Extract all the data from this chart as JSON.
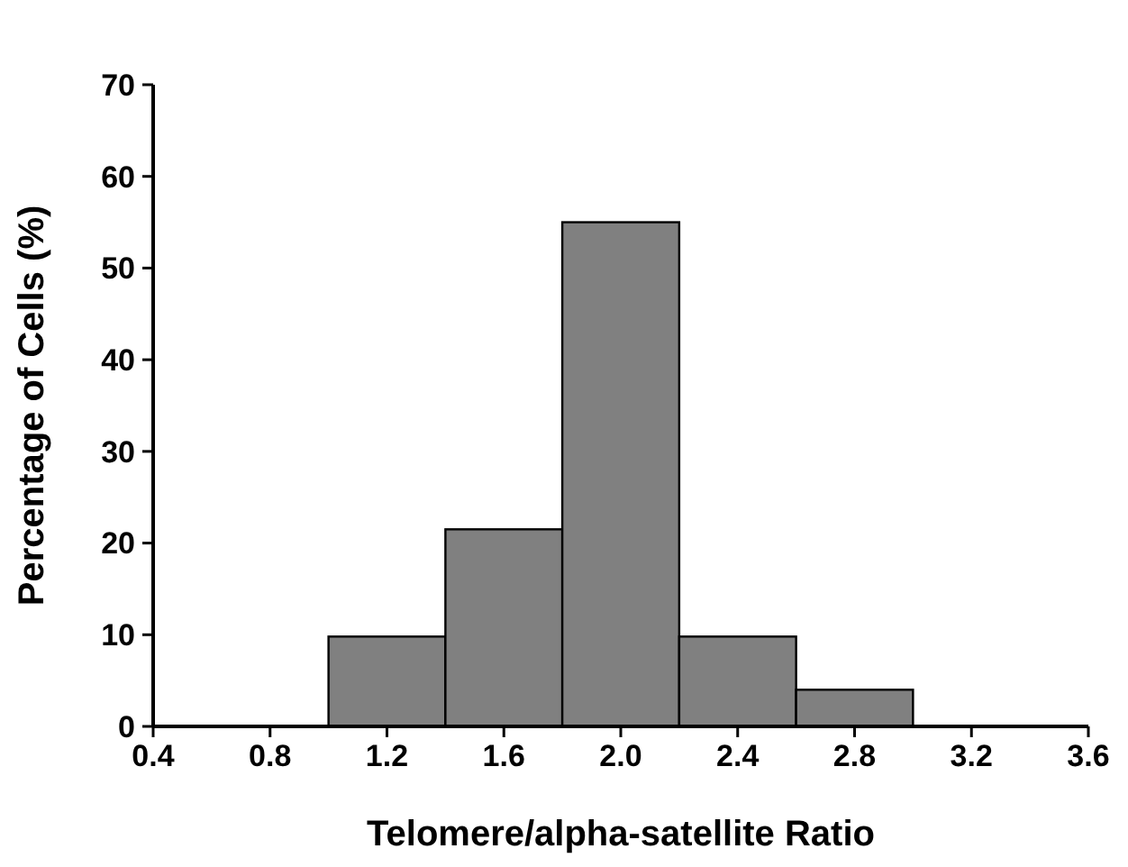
{
  "chart_data": {
    "type": "histogram",
    "xlabel": "Telomere/alpha-satellite Ratio",
    "ylabel": "Percentage of Cells (%)",
    "bins": [
      1.0,
      1.4,
      1.8,
      2.2,
      2.6,
      3.0
    ],
    "values": [
      9.8,
      21.5,
      55,
      9.8,
      4
    ],
    "color": "#808080",
    "xlim": [
      0.4,
      3.6
    ],
    "xticks": [
      0.4,
      0.8,
      1.2,
      1.6,
      {
        "value": 2,
        "label": "2.0"
      },
      2.4,
      2.8,
      3.2,
      3.6
    ],
    "ylim": [
      0,
      70
    ],
    "yticks": [
      0,
      10,
      20,
      30,
      40,
      50,
      60,
      70
    ],
    "grid": false
  }
}
